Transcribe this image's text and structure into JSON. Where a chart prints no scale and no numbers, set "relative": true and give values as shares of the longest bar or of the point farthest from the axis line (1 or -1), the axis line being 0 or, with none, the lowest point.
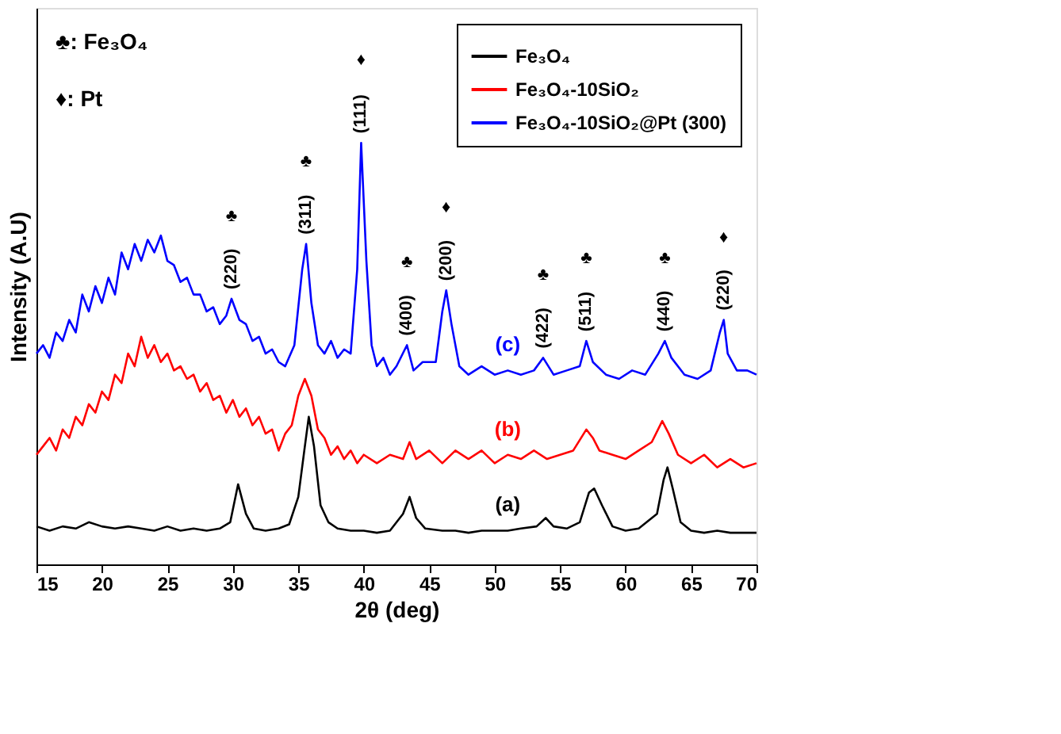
{
  "chart_data": {
    "type": "line",
    "relative": true,
    "xlabel": "2θ (deg)",
    "ylabel": "Intensity (A.U)",
    "xlim": [
      15,
      70
    ],
    "xticks": [
      15,
      20,
      25,
      30,
      35,
      40,
      45,
      50,
      55,
      60,
      65,
      70
    ],
    "legend": "top right",
    "grid": false,
    "marker": "none",
    "line_style": "solid",
    "series": [
      {
        "name": "Fe₃O₄",
        "color": "#000000",
        "x": [
          15,
          16,
          17,
          18,
          19,
          20,
          21,
          22,
          23,
          24,
          25,
          26,
          27,
          28,
          29,
          29.8,
          30.4,
          31,
          31.6,
          32.5,
          33.5,
          34.3,
          35,
          35.5,
          35.8,
          36.2,
          36.7,
          37.3,
          38,
          39,
          40,
          41,
          42,
          43,
          43.5,
          44,
          44.7,
          46,
          47,
          48,
          49,
          50,
          51,
          52,
          53.2,
          53.9,
          54.5,
          55.5,
          56.5,
          57.2,
          57.6,
          58.2,
          59,
          60,
          61,
          62.4,
          62.9,
          63.2,
          63.6,
          64.2,
          65,
          66,
          67,
          68,
          69,
          70
        ],
        "values": [
          0.09,
          0.08,
          0.09,
          0.085,
          0.1,
          0.09,
          0.085,
          0.09,
          0.085,
          0.08,
          0.09,
          0.08,
          0.085,
          0.08,
          0.085,
          0.1,
          0.19,
          0.12,
          0.085,
          0.08,
          0.085,
          0.095,
          0.16,
          0.28,
          0.35,
          0.28,
          0.14,
          0.1,
          0.085,
          0.08,
          0.08,
          0.075,
          0.08,
          0.12,
          0.16,
          0.11,
          0.085,
          0.08,
          0.08,
          0.075,
          0.08,
          0.08,
          0.08,
          0.085,
          0.09,
          0.11,
          0.09,
          0.085,
          0.1,
          0.17,
          0.18,
          0.14,
          0.09,
          0.08,
          0.085,
          0.12,
          0.2,
          0.23,
          0.18,
          0.1,
          0.08,
          0.075,
          0.08,
          0.075,
          0.075,
          0.075
        ]
      },
      {
        "name": "Fe₃O₄-10SiO₂",
        "color": "#ff0000",
        "x": [
          15,
          15.5,
          16,
          16.5,
          17,
          17.5,
          18,
          18.5,
          19,
          19.5,
          20,
          20.5,
          21,
          21.5,
          22,
          22.5,
          23,
          23.5,
          24,
          24.5,
          25,
          25.5,
          26,
          26.5,
          27,
          27.5,
          28,
          28.5,
          29,
          29.5,
          30,
          30.5,
          31,
          31.5,
          32,
          32.5,
          33,
          33.5,
          34,
          34.5,
          35,
          35.5,
          36,
          36.5,
          37,
          37.5,
          38,
          38.5,
          39,
          39.5,
          40,
          41,
          42,
          43,
          43.5,
          44,
          45,
          46,
          47,
          48,
          49,
          50,
          51,
          52,
          53,
          54,
          55,
          56,
          57,
          57.5,
          58,
          59,
          60,
          61,
          62,
          62.8,
          63.3,
          64,
          65,
          66,
          67,
          68,
          69,
          70
        ],
        "values": [
          0.26,
          0.28,
          0.3,
          0.27,
          0.32,
          0.3,
          0.35,
          0.33,
          0.38,
          0.36,
          0.41,
          0.39,
          0.45,
          0.43,
          0.5,
          0.47,
          0.54,
          0.49,
          0.52,
          0.48,
          0.5,
          0.46,
          0.47,
          0.44,
          0.45,
          0.41,
          0.43,
          0.39,
          0.4,
          0.36,
          0.39,
          0.35,
          0.37,
          0.33,
          0.35,
          0.31,
          0.32,
          0.27,
          0.31,
          0.33,
          0.4,
          0.44,
          0.4,
          0.32,
          0.3,
          0.26,
          0.28,
          0.25,
          0.27,
          0.24,
          0.26,
          0.24,
          0.26,
          0.25,
          0.29,
          0.25,
          0.27,
          0.24,
          0.27,
          0.25,
          0.27,
          0.24,
          0.26,
          0.25,
          0.27,
          0.25,
          0.26,
          0.27,
          0.32,
          0.3,
          0.27,
          0.26,
          0.25,
          0.27,
          0.29,
          0.34,
          0.31,
          0.26,
          0.24,
          0.26,
          0.23,
          0.25,
          0.23,
          0.24
        ]
      },
      {
        "name": "Fe₃O₄-10SiO₂@Pt (300)",
        "color": "#0000ff",
        "x": [
          15,
          15.5,
          16,
          16.5,
          17,
          17.5,
          18,
          18.5,
          19,
          19.5,
          20,
          20.5,
          21,
          21.5,
          22,
          22.5,
          23,
          23.5,
          24,
          24.5,
          25,
          25.5,
          26,
          26.5,
          27,
          27.5,
          28,
          28.5,
          29,
          29.5,
          29.9,
          30.5,
          31,
          31.5,
          32,
          32.5,
          33,
          33.5,
          34,
          34.7,
          35.3,
          35.6,
          36,
          36.5,
          37,
          37.5,
          38,
          38.5,
          39,
          39.5,
          39.8,
          40.2,
          40.6,
          41,
          41.5,
          42,
          42.5,
          43.3,
          43.8,
          44.5,
          45.5,
          46,
          46.3,
          46.7,
          47.3,
          48,
          49,
          50,
          51,
          52,
          53,
          53.7,
          54.5,
          55.5,
          56.5,
          57,
          57.5,
          58.5,
          59.5,
          60.5,
          61.5,
          62.5,
          63,
          63.5,
          64.5,
          65.5,
          66.5,
          67.2,
          67.5,
          67.8,
          68.5,
          69.3,
          70
        ],
        "values": [
          0.5,
          0.52,
          0.49,
          0.55,
          0.53,
          0.58,
          0.55,
          0.64,
          0.6,
          0.66,
          0.62,
          0.68,
          0.64,
          0.74,
          0.7,
          0.76,
          0.72,
          0.77,
          0.74,
          0.78,
          0.72,
          0.71,
          0.67,
          0.68,
          0.64,
          0.64,
          0.6,
          0.61,
          0.57,
          0.59,
          0.63,
          0.58,
          0.57,
          0.53,
          0.54,
          0.5,
          0.51,
          0.48,
          0.47,
          0.52,
          0.7,
          0.76,
          0.62,
          0.52,
          0.5,
          0.53,
          0.49,
          0.51,
          0.5,
          0.7,
          1.0,
          0.72,
          0.52,
          0.47,
          0.49,
          0.45,
          0.47,
          0.52,
          0.46,
          0.48,
          0.48,
          0.6,
          0.65,
          0.57,
          0.47,
          0.45,
          0.47,
          0.45,
          0.46,
          0.45,
          0.46,
          0.49,
          0.45,
          0.46,
          0.47,
          0.53,
          0.48,
          0.45,
          0.44,
          0.46,
          0.45,
          0.5,
          0.53,
          0.49,
          0.45,
          0.44,
          0.46,
          0.55,
          0.58,
          0.5,
          0.46,
          0.46,
          0.45
        ]
      }
    ],
    "annotations": [
      "♣: Fe₃O₄",
      "♦: Pt",
      {
        "text": "(220)",
        "x": 29.9,
        "y": 0.63
      },
      "♣",
      {
        "text": "(311)",
        "x": 35.6,
        "y": 0.76
      },
      "♣",
      {
        "text": "(111)",
        "x": 39.8,
        "y": 1.0
      },
      "♦",
      {
        "text": "(400)",
        "x": 43.3,
        "y": 0.52
      },
      "♣",
      {
        "text": "(200)",
        "x": 46.3,
        "y": 0.65
      },
      "♦",
      {
        "text": "(422)",
        "x": 53.7,
        "y": 0.49
      },
      "♣",
      {
        "text": "(511)",
        "x": 57,
        "y": 0.53
      },
      "♣",
      {
        "text": "(440)",
        "x": 63,
        "y": 0.53
      },
      "♣",
      {
        "text": "(220)",
        "x": 67.5,
        "y": 0.58
      },
      "♦",
      {
        "text": "(a)",
        "x": 51,
        "y": 0.08
      },
      {
        "text": "(b)",
        "x": 51,
        "y": 0.26
      },
      {
        "text": "(c)",
        "x": 51,
        "y": 0.46
      }
    ]
  }
}
